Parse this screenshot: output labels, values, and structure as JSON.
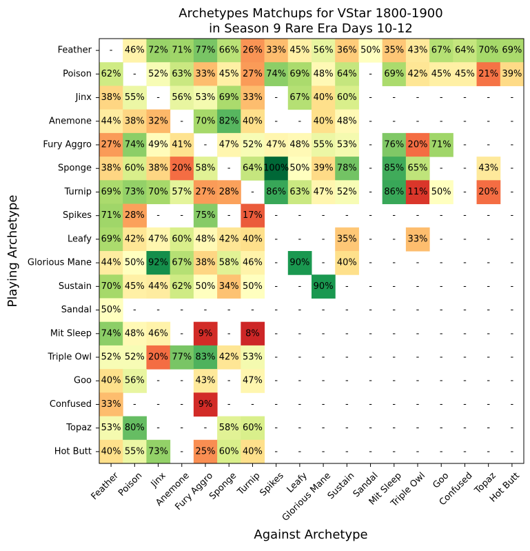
{
  "chart_data": {
    "type": "heatmap",
    "title": [
      "Archetypes Matchups for VStar 1800-1900",
      "in Season 9 Rare Era Days 10-12"
    ],
    "xlabel": "Against Archetype",
    "ylabel": "Playing Archetype",
    "x_categories": [
      "Feather",
      "Poison",
      "Jinx",
      "Anemone",
      "Fury Aggro",
      "Sponge",
      "Turnip",
      "Spikes",
      "Leafy",
      "Glorious Mane",
      "Sustain",
      "Sandal",
      "Mit Sleep",
      "Triple Owl",
      "Goo",
      "Confused",
      "Topaz",
      "Hot Butt"
    ],
    "y_categories": [
      "Feather",
      "Poison",
      "Jinx",
      "Anemone",
      "Fury Aggro",
      "Sponge",
      "Turnip",
      "Spikes",
      "Leafy",
      "Glorious Mane",
      "Sustain",
      "Sandal",
      "Mit Sleep",
      "Triple Owl",
      "Goo",
      "Confused",
      "Topaz",
      "Hot Butt"
    ],
    "missing_label": "-",
    "value_suffix": "%",
    "colormap": "RdYlGn",
    "value_range": [
      0,
      100
    ],
    "values": [
      [
        null,
        46,
        72,
        71,
        77,
        66,
        26,
        33,
        45,
        56,
        36,
        50,
        35,
        43,
        67,
        64,
        70,
        69
      ],
      [
        62,
        null,
        52,
        63,
        33,
        45,
        27,
        74,
        69,
        48,
        64,
        null,
        69,
        42,
        45,
        45,
        21,
        39
      ],
      [
        38,
        55,
        null,
        56,
        53,
        69,
        33,
        null,
        67,
        40,
        60,
        null,
        null,
        null,
        null,
        null,
        null,
        null
      ],
      [
        44,
        38,
        32,
        null,
        70,
        82,
        40,
        null,
        null,
        40,
        48,
        null,
        null,
        null,
        null,
        null,
        null,
        null
      ],
      [
        27,
        74,
        49,
        41,
        null,
        47,
        52,
        47,
        48,
        55,
        53,
        null,
        76,
        20,
        71,
        null,
        null,
        null
      ],
      [
        38,
        60,
        38,
        20,
        58,
        null,
        64,
        100,
        50,
        39,
        78,
        null,
        85,
        65,
        null,
        null,
        43,
        null
      ],
      [
        69,
        73,
        70,
        57,
        27,
        28,
        null,
        86,
        63,
        47,
        52,
        null,
        86,
        11,
        50,
        null,
        20,
        null
      ],
      [
        71,
        28,
        null,
        null,
        75,
        null,
        17,
        null,
        null,
        null,
        null,
        null,
        null,
        null,
        null,
        null,
        null,
        null
      ],
      [
        69,
        42,
        47,
        60,
        48,
        42,
        40,
        null,
        null,
        null,
        35,
        null,
        null,
        33,
        null,
        null,
        null,
        null
      ],
      [
        44,
        50,
        92,
        67,
        38,
        58,
        46,
        null,
        90,
        null,
        40,
        null,
        null,
        null,
        null,
        null,
        null,
        null
      ],
      [
        70,
        45,
        44,
        62,
        50,
        34,
        50,
        null,
        null,
        90,
        null,
        null,
        null,
        null,
        null,
        null,
        null,
        null
      ],
      [
        50,
        null,
        null,
        null,
        null,
        null,
        null,
        null,
        null,
        null,
        null,
        null,
        null,
        null,
        null,
        null,
        null,
        null
      ],
      [
        74,
        48,
        46,
        null,
        9,
        null,
        8,
        null,
        null,
        null,
        null,
        null,
        null,
        null,
        null,
        null,
        null,
        null
      ],
      [
        52,
        52,
        20,
        77,
        83,
        42,
        53,
        null,
        null,
        null,
        null,
        null,
        null,
        null,
        null,
        null,
        null,
        null
      ],
      [
        40,
        56,
        null,
        null,
        43,
        null,
        47,
        null,
        null,
        null,
        null,
        null,
        null,
        null,
        null,
        null,
        null,
        null
      ],
      [
        33,
        null,
        null,
        null,
        9,
        null,
        null,
        null,
        null,
        null,
        null,
        null,
        null,
        null,
        null,
        null,
        null,
        null
      ],
      [
        53,
        80,
        null,
        null,
        null,
        58,
        60,
        null,
        null,
        null,
        null,
        null,
        null,
        null,
        null,
        null,
        null,
        null
      ],
      [
        40,
        55,
        73,
        null,
        25,
        60,
        40,
        null,
        null,
        null,
        null,
        null,
        null,
        null,
        null,
        null,
        null,
        null
      ]
    ]
  }
}
